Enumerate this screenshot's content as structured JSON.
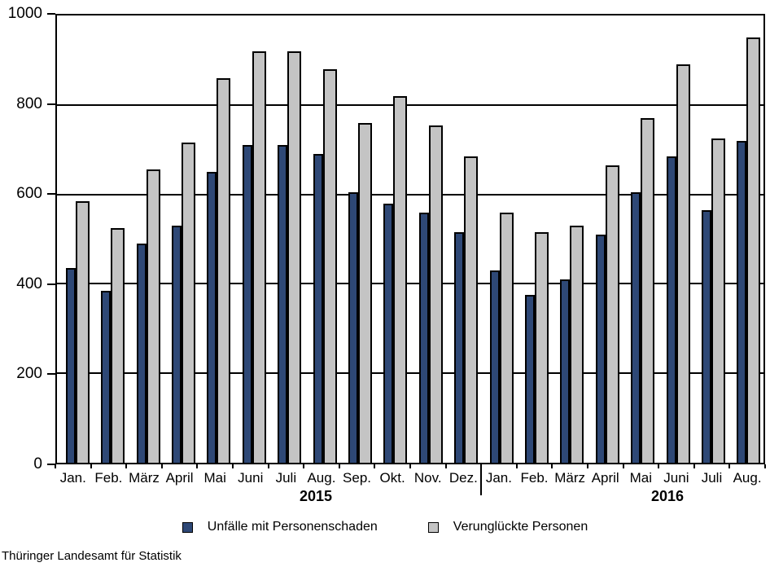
{
  "chart_data": {
    "type": "bar",
    "title": "",
    "xlabel": "",
    "ylabel": "",
    "ylim": [
      0,
      1000
    ],
    "yticks": [
      "0",
      "200",
      "400",
      "600",
      "800",
      "1000"
    ],
    "grid": "horizontal-black",
    "legend_position": "bottom",
    "categories": [
      "Jan.",
      "Feb.",
      "März",
      "April",
      "Mai",
      "Juni",
      "Juli",
      "Aug.",
      "Sep.",
      "Okt.",
      "Nov.",
      "Dez.",
      "Jan.",
      "Feb.",
      "März",
      "April",
      "Mai",
      "Juni",
      "Juli",
      "Aug."
    ],
    "year_groups": [
      {
        "label": "2015",
        "span": 12
      },
      {
        "label": "2016",
        "span": 8
      }
    ],
    "series": [
      {
        "name": "Unfälle mit Personenschaden",
        "color": "#2e4876",
        "values": [
          435,
          385,
          490,
          530,
          650,
          710,
          710,
          690,
          605,
          580,
          560,
          515,
          430,
          375,
          410,
          510,
          605,
          685,
          565,
          720
        ]
      },
      {
        "name": "Verunglückte Personen",
        "color": "#c4c4c4",
        "values": [
          585,
          525,
          655,
          715,
          860,
          920,
          920,
          880,
          760,
          820,
          755,
          685,
          560,
          515,
          530,
          665,
          770,
          890,
          725,
          950
        ]
      }
    ]
  },
  "colors": {
    "axis": "#000000",
    "series1": "#2e4876",
    "series2": "#c4c4c4"
  },
  "footer": {
    "source": "Thüringer Landesamt für Statistik"
  }
}
